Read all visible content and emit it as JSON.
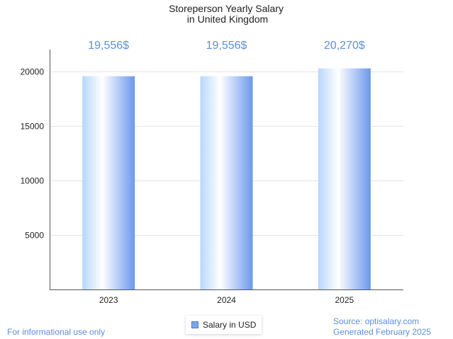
{
  "chart_data": {
    "type": "bar",
    "title": [
      "Storeperson Yearly Salary",
      "in United Kingdom"
    ],
    "categories": [
      "2023",
      "2024",
      "2025"
    ],
    "series": [
      {
        "name": "Salary in USD",
        "values": [
          19556,
          19556,
          20270
        ]
      }
    ],
    "data_labels": [
      "19,556$",
      "19,556$",
      "20,270$"
    ],
    "ylim": [
      0,
      22000
    ],
    "yticks": [
      5000,
      10000,
      15000,
      20000
    ],
    "xlabel": "",
    "ylabel": "",
    "grid": true,
    "legend_position": "bottom"
  },
  "colors": {
    "bar_dark": "#6b98ec",
    "bar_light": "#b8d6fb",
    "bar_white": "#ffffff",
    "label": "#5b8fdc",
    "grid": "#e5e5e5",
    "axis": "#555555"
  },
  "legend": {
    "label": "Salary in USD"
  },
  "footer": {
    "left": "For informational use only",
    "source": "Source: optisalary.com",
    "generated": "Generated February 2025"
  }
}
